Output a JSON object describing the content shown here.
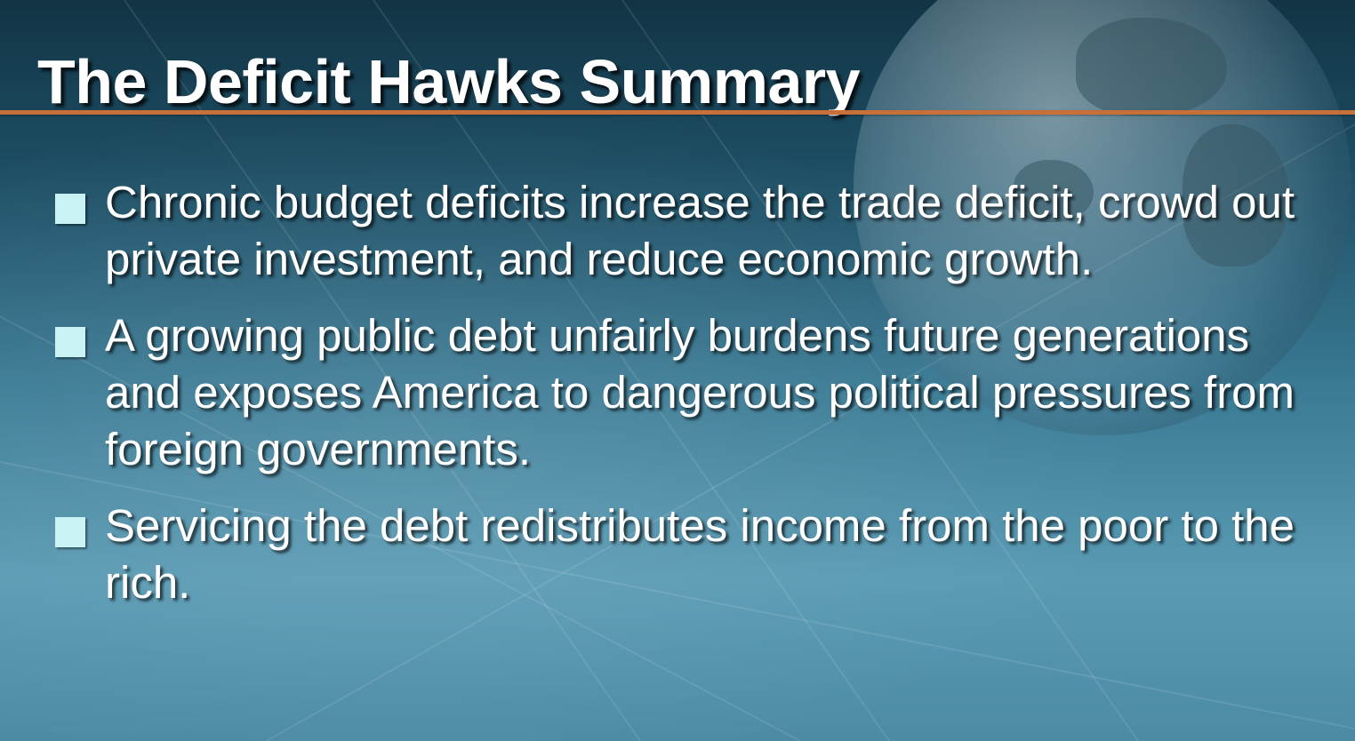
{
  "slide": {
    "title": "The Deficit Hawks Summary",
    "bullets": [
      "Chronic budget deficits increase the trade deficit, crowd out private investment, and reduce economic growth.",
      "A growing public debt unfairly burdens future generations and exposes America to dangerous political pressures from foreign governments.",
      "Servicing the debt redistributes income from the poor to the rich."
    ]
  },
  "colors": {
    "background_top": "#123445",
    "background_mid": "#3a7a94",
    "background_bottom": "#5a9bb4",
    "title_rule": "#c8703a",
    "bullet_marker": "#c9f2f4",
    "text": "#ffffff"
  },
  "icons": {
    "bullet_marker": "square-bullet-icon",
    "background_graphic": "globe-icon"
  }
}
